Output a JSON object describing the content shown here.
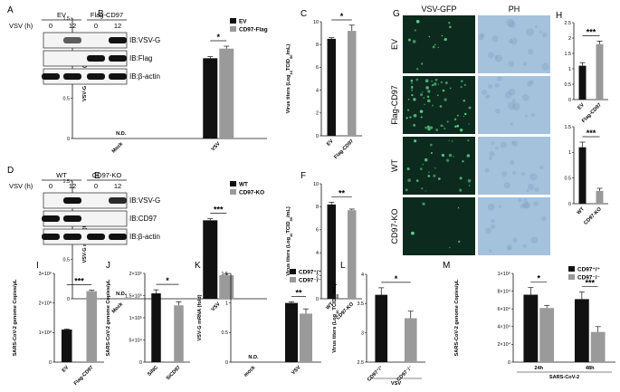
{
  "colors": {
    "black_bar": "#111111",
    "gray_bar": "#9a9a9a",
    "micro_bg": "#0d2a1e",
    "ph_bg": "#a4c2dc",
    "gfp_spot": "#5fd08a"
  },
  "blotA": {
    "label": "A",
    "vsv": "VSV (h)",
    "groups": [
      {
        "name": "EV",
        "times": [
          "0",
          "12"
        ]
      },
      {
        "name": "Flag-CD97",
        "times": [
          "0",
          "12"
        ]
      }
    ],
    "rows": [
      {
        "label": "IB:VSV-G",
        "lanes": [
          0,
          0.55,
          0,
          1
        ]
      },
      {
        "label": "IB:Flag",
        "lanes": [
          0,
          0,
          1,
          1
        ]
      },
      {
        "label": "IB:β-actin",
        "lanes": [
          1,
          1,
          1,
          1
        ]
      }
    ]
  },
  "blotD": {
    "label": "D",
    "vsv": "VSV (h)",
    "groups": [
      {
        "name": "WT",
        "times": [
          "0",
          "12"
        ]
      },
      {
        "name": "CD97-KO",
        "times": [
          "0",
          "12"
        ]
      }
    ],
    "rows": [
      {
        "label": "IB:VSV-G",
        "lanes": [
          0,
          1,
          0,
          0.85
        ]
      },
      {
        "label": "IB:CD97",
        "lanes": [
          1,
          1,
          0,
          0
        ]
      },
      {
        "label": "IB:β-actin",
        "lanes": [
          1,
          1,
          1,
          1
        ]
      }
    ]
  },
  "micro": {
    "label": "G",
    "col_titles": [
      "VSV-GFP",
      "PH"
    ],
    "rows": [
      {
        "label": "EV",
        "gfp": 0.25
      },
      {
        "label": "Flag-CD97",
        "gfp": 1.0
      },
      {
        "label": "WT",
        "gfp": 0.5
      },
      {
        "label": "CD97-KO",
        "gfp": 0.08
      }
    ]
  },
  "chart_data": [
    {
      "id": "B",
      "type": "bar",
      "ylabel": "VSV-G mRNA (fold)",
      "ylim": [
        0,
        1.5
      ],
      "yticks": [
        0,
        0.5,
        1.0,
        1.5
      ],
      "categories": [
        "Mock",
        "VSV"
      ],
      "nd": [
        "N.D.",
        ""
      ],
      "legend": [
        "EV",
        "CD97-Flag"
      ],
      "legend_placement": "top-right",
      "series": [
        {
          "name": "EV",
          "values": [
            0,
            1.0
          ],
          "err": [
            0,
            0.02
          ],
          "color": "black"
        },
        {
          "name": "CD97-Flag",
          "values": [
            0,
            1.12
          ],
          "err": [
            0,
            0.03
          ],
          "color": "gray"
        }
      ],
      "sig": [
        {
          "label": "*",
          "cat": 1
        }
      ]
    },
    {
      "id": "C",
      "type": "bar",
      "ylabel": "Virus titers (Log10TCID50/mL)",
      "ylim": [
        0,
        10
      ],
      "yticks": [
        0,
        2,
        4,
        6,
        8,
        10
      ],
      "categories": [
        "EV",
        "Flag-CD97"
      ],
      "values": [
        8.5,
        9.2
      ],
      "err": [
        0.1,
        0.5
      ],
      "colors": [
        "black",
        "gray"
      ],
      "sig": [
        {
          "label": "*",
          "from": 0,
          "to": 1
        }
      ]
    },
    {
      "id": "E",
      "type": "bar",
      "ylabel": "VSV-G mRNA (fold)",
      "ylim": [
        0,
        1.5
      ],
      "yticks": [
        0,
        0.5,
        1.0,
        1.5
      ],
      "categories": [
        "Mock",
        "VSV"
      ],
      "nd": [
        "N.D.",
        ""
      ],
      "legend": [
        "WT",
        "CD97-KO"
      ],
      "legend_placement": "top-right",
      "series": [
        {
          "name": "WT",
          "values": [
            0,
            1.0
          ],
          "err": [
            0,
            0.02
          ],
          "color": "black"
        },
        {
          "name": "CD97-KO",
          "values": [
            0,
            0.3
          ],
          "err": [
            0,
            0.02
          ],
          "color": "gray"
        }
      ],
      "sig": [
        {
          "label": "***",
          "cat": 1
        }
      ]
    },
    {
      "id": "F",
      "type": "bar",
      "ylabel": "Virus titers (Log10TCID50/mL)",
      "ylim": [
        0,
        10
      ],
      "yticks": [
        0,
        2,
        4,
        6,
        8,
        10
      ],
      "categories": [
        "WT",
        "CD97-KO"
      ],
      "values": [
        8.2,
        7.7
      ],
      "err": [
        0.2,
        0.1
      ],
      "colors": [
        "black",
        "gray"
      ],
      "sig": [
        {
          "label": "**",
          "from": 0,
          "to": 1
        }
      ]
    },
    {
      "id": "H1",
      "type": "bar",
      "ylabel": "RFI. GFP",
      "ylim": [
        0,
        2.5
      ],
      "yticks": [
        0,
        0.5,
        1.0,
        1.5,
        2.0,
        2.5
      ],
      "categories": [
        "EV",
        "Flag-CD97"
      ],
      "values": [
        1.1,
        1.8
      ],
      "err": [
        0.1,
        0.1
      ],
      "colors": [
        "black",
        "gray"
      ],
      "sig": [
        {
          "label": "***",
          "from": 0,
          "to": 1
        }
      ]
    },
    {
      "id": "H2",
      "type": "bar",
      "ylabel": "RFI. GFP",
      "ylim": [
        0,
        1.5
      ],
      "yticks": [
        0,
        0.5,
        1.0,
        1.5
      ],
      "categories": [
        "WT",
        "CD97-KO"
      ],
      "values": [
        1.1,
        0.25
      ],
      "err": [
        0.1,
        0.05
      ],
      "colors": [
        "black",
        "gray"
      ],
      "sig": [
        {
          "label": "***",
          "from": 0,
          "to": 1
        }
      ]
    },
    {
      "id": "I",
      "type": "bar",
      "ylabel": "SARS-CoV-2 genome Copies/μL",
      "ylim": [
        0,
        300000000
      ],
      "yticks": [
        0,
        100000000,
        200000000,
        300000000
      ],
      "yticklabels": [
        "0",
        "1×10⁸",
        "2×10⁸",
        "3×10⁸"
      ],
      "categories": [
        "EV",
        "Flag-CD97"
      ],
      "values": [
        110000000,
        240000000
      ],
      "err": [
        2000000,
        3000000
      ],
      "colors": [
        "black",
        "gray"
      ],
      "sig": [
        {
          "label": "***",
          "from": 0,
          "to": 1
        }
      ]
    },
    {
      "id": "J",
      "type": "bar",
      "ylabel": "SARS-CoV-2 genome Copies/μL",
      "ylim": [
        0,
        200000
      ],
      "yticks": [
        0,
        50000,
        100000,
        150000,
        200000
      ],
      "yticklabels": [
        "0",
        "5×10⁴",
        "1×10⁵",
        "1.5×10⁵",
        "2×10⁵"
      ],
      "categories": [
        "SiNC",
        "SiCD97"
      ],
      "values": [
        155000,
        128000
      ],
      "err": [
        8000,
        8000
      ],
      "colors": [
        "black",
        "gray"
      ],
      "sig": [
        {
          "label": "*",
          "from": 0,
          "to": 1
        }
      ]
    },
    {
      "id": "K",
      "type": "bar",
      "ylabel": "VSV-G mRNA (fold)",
      "ylim": [
        0,
        1.5
      ],
      "yticks": [
        0,
        0.5,
        1.0,
        1.5
      ],
      "categories": [
        "mock",
        "VSV"
      ],
      "nd": [
        "N.D.",
        ""
      ],
      "legend": [
        "CD97⁺/⁺",
        "CD97⁻/⁻"
      ],
      "legend_placement": "top-right",
      "series": [
        {
          "name": "CD97⁺/⁺",
          "values": [
            0,
            1.0
          ],
          "err": [
            0,
            0.02
          ],
          "color": "black"
        },
        {
          "name": "CD97⁻/⁻",
          "values": [
            0,
            0.82
          ],
          "err": [
            0,
            0.08
          ],
          "color": "gray"
        }
      ],
      "sig": [
        {
          "label": "**",
          "cat": 1
        }
      ]
    },
    {
      "id": "L",
      "type": "bar",
      "ylabel": "Virus titers (Log10TCID50/mL)",
      "ylim": [
        2.5,
        4.0
      ],
      "yticks": [
        2.5,
        3.0,
        3.5,
        4.0
      ],
      "categories": [
        "CD97⁺/⁺",
        "CD97⁻/⁻"
      ],
      "values": [
        3.65,
        3.25
      ],
      "err": [
        0.12,
        0.12
      ],
      "colors": [
        "black",
        "gray"
      ],
      "group_label": "VSV",
      "sig": [
        {
          "label": "*",
          "from": 0,
          "to": 1
        }
      ]
    },
    {
      "id": "M",
      "type": "bar",
      "ylabel": "SARS-CoV-2 genome Copies/μL",
      "ylim": [
        0,
        100000
      ],
      "yticks": [
        0,
        20000,
        40000,
        60000,
        80000,
        100000
      ],
      "yticklabels": [
        "0",
        "2×10⁴",
        "4×10⁴",
        "6×10⁴",
        "8×10⁴",
        "1×10⁵"
      ],
      "categories": [
        "24h",
        "48h"
      ],
      "group_label": "SARS-CoV-2",
      "legend": [
        "CD97⁺/⁺",
        "CD97⁻/⁻"
      ],
      "legend_placement": "top-right",
      "series": [
        {
          "name": "CD97⁺/⁺",
          "values": [
            76000,
            71000
          ],
          "err": [
            8000,
            8000
          ],
          "color": "black"
        },
        {
          "name": "CD97⁻/⁻",
          "values": [
            61000,
            34000
          ],
          "err": [
            3000,
            6000
          ],
          "color": "gray"
        }
      ],
      "sig": [
        {
          "label": "*",
          "cat": 0
        },
        {
          "label": "***",
          "cat": 1
        }
      ]
    }
  ]
}
